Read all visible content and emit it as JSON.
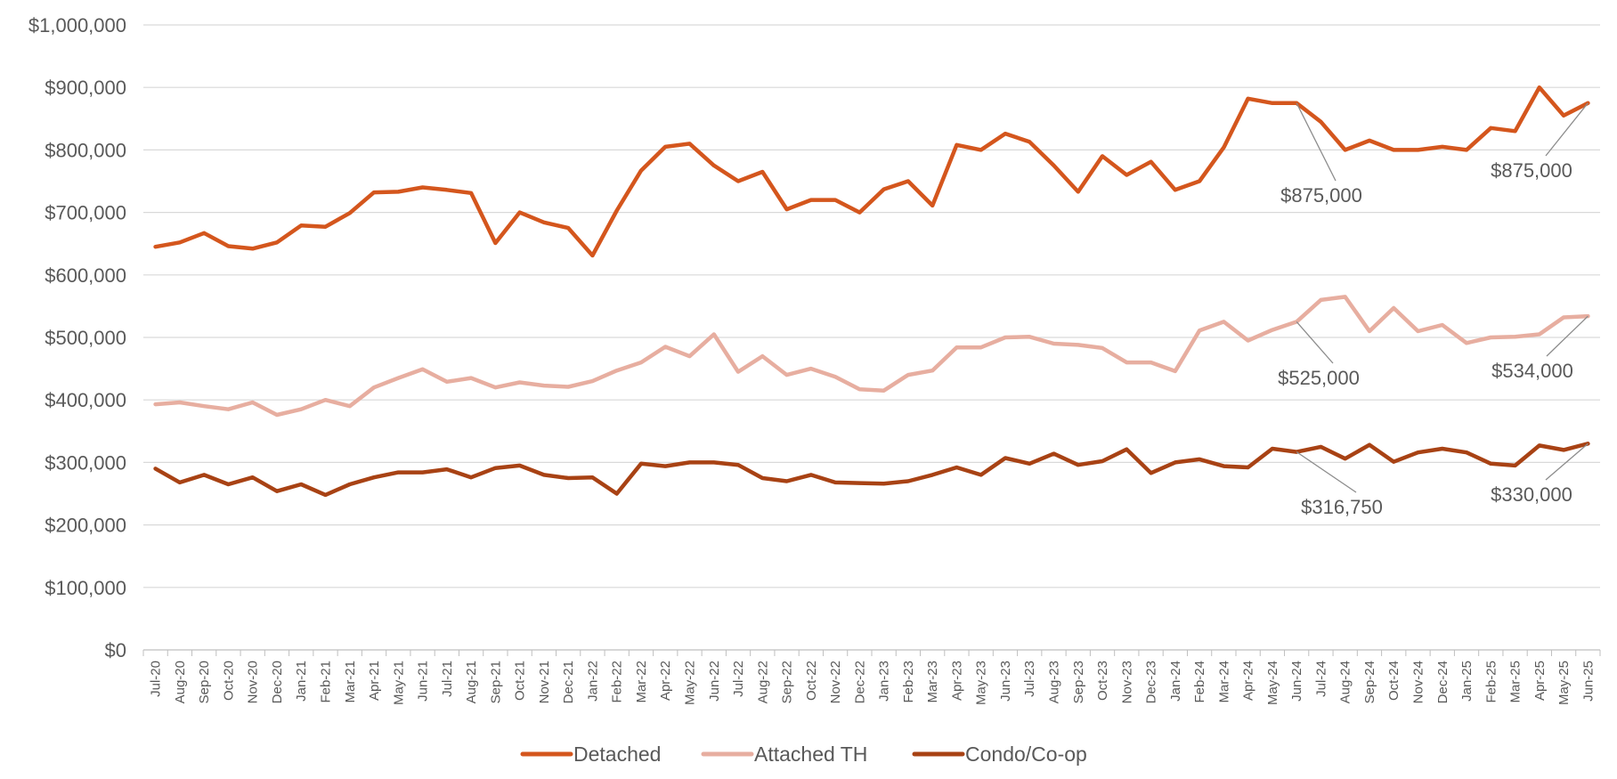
{
  "chart_data": {
    "type": "line",
    "x": [
      "Jul-20",
      "Aug-20",
      "Sep-20",
      "Oct-20",
      "Nov-20",
      "Dec-20",
      "Jan-21",
      "Feb-21",
      "Mar-21",
      "Apr-21",
      "May-21",
      "Jun-21",
      "Jul-21",
      "Aug-21",
      "Sep-21",
      "Oct-21",
      "Nov-21",
      "Dec-21",
      "Jan-22",
      "Feb-22",
      "Mar-22",
      "Apr-22",
      "May-22",
      "Jun-22",
      "Jul-22",
      "Aug-22",
      "Sep-22",
      "Oct-22",
      "Nov-22",
      "Dec-22",
      "Jan-23",
      "Feb-23",
      "Mar-23",
      "Apr-23",
      "May-23",
      "Jun-23",
      "Jul-23",
      "Aug-23",
      "Sep-23",
      "Oct-23",
      "Nov-23",
      "Dec-23",
      "Jan-24",
      "Feb-24",
      "Mar-24",
      "Apr-24",
      "May-24",
      "Jun-24",
      "Jul-24",
      "Aug-24",
      "Sep-24",
      "Oct-24",
      "Nov-24",
      "Dec-24",
      "Jan-25",
      "Feb-25",
      "Mar-25",
      "Apr-25",
      "May-25",
      "Jun-25"
    ],
    "yticks": [
      "$0",
      "$100,000",
      "$200,000",
      "$300,000",
      "$400,000",
      "$500,000",
      "$600,000",
      "$700,000",
      "$800,000",
      "$900,000",
      "$1,000,000"
    ],
    "ylim": [
      0,
      1000000
    ],
    "grid": "horizontal",
    "legend_position": "bottom",
    "series": [
      {
        "name": "Detached",
        "color": "#d4561d",
        "values": [
          645000,
          652000,
          667000,
          646000,
          642000,
          652000,
          679000,
          677000,
          699000,
          732000,
          733000,
          740000,
          736000,
          731000,
          651000,
          700000,
          684000,
          675000,
          631000,
          703000,
          767000,
          805000,
          810000,
          775000,
          750000,
          765000,
          705000,
          720000,
          720000,
          700000,
          737000,
          750000,
          711000,
          808000,
          800000,
          826000,
          813000,
          775000,
          733000,
          790000,
          760000,
          781000,
          736000,
          750000,
          804000,
          882000,
          875000,
          875000,
          845000,
          800000,
          815000,
          800000,
          800000,
          805000,
          800000,
          835000,
          830000,
          900000,
          855000,
          875000
        ]
      },
      {
        "name": "Attached TH",
        "color": "#e7aea0",
        "values": [
          393000,
          396000,
          390000,
          385000,
          396000,
          376000,
          385000,
          400000,
          390000,
          420000,
          435000,
          449000,
          429000,
          435000,
          420000,
          428000,
          423000,
          421000,
          430000,
          447000,
          460000,
          485000,
          470000,
          505000,
          445000,
          470000,
          440000,
          450000,
          437000,
          417000,
          415000,
          440000,
          447000,
          484000,
          484000,
          500000,
          501000,
          490000,
          488000,
          483000,
          460000,
          460000,
          446000,
          511000,
          525000,
          495000,
          512000,
          525000,
          560000,
          565000,
          510000,
          547000,
          510000,
          520000,
          491000,
          500000,
          501000,
          505000,
          532000,
          534000
        ]
      },
      {
        "name": "Condo/Co-op",
        "color": "#a84214",
        "values": [
          290000,
          268000,
          280000,
          265000,
          276000,
          254000,
          265000,
          248000,
          265000,
          276000,
          284000,
          284000,
          289000,
          276000,
          291000,
          295000,
          280000,
          275000,
          276000,
          250000,
          298000,
          294000,
          300000,
          300000,
          296000,
          275000,
          270000,
          280000,
          268000,
          267000,
          266000,
          270000,
          280000,
          292000,
          280000,
          307000,
          298000,
          314000,
          296000,
          302000,
          321000,
          283000,
          300000,
          305000,
          294000,
          292000,
          322000,
          316750,
          325000,
          306000,
          328000,
          301000,
          316000,
          322000,
          316000,
          298000,
          295000,
          327000,
          320000,
          330000
        ]
      }
    ],
    "annotations": [
      {
        "series": "Detached",
        "x": "Jun-24",
        "text": "$875,000"
      },
      {
        "series": "Detached",
        "x": "Jun-25",
        "text": "$875,000"
      },
      {
        "series": "Attached TH",
        "x": "Jun-24",
        "text": "$525,000"
      },
      {
        "series": "Attached TH",
        "x": "Jun-25",
        "text": "$534,000"
      },
      {
        "series": "Condo/Co-op",
        "x": "Jun-24",
        "text": "$316,750"
      },
      {
        "series": "Condo/Co-op",
        "x": "Jun-25",
        "text": "$330,000"
      }
    ]
  }
}
